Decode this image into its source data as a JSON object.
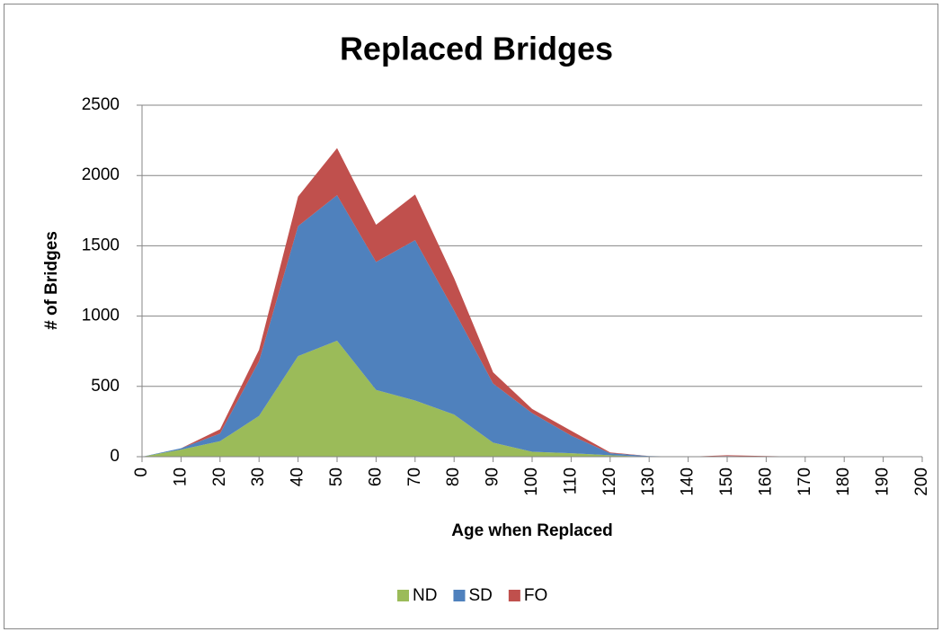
{
  "chart_data": {
    "type": "area",
    "stacked": true,
    "title": "Replaced Bridges",
    "x_label": "Age when Replaced",
    "y_label": "# of Bridges",
    "x": [
      0,
      10,
      20,
      30,
      40,
      50,
      60,
      70,
      80,
      90,
      100,
      110,
      120,
      130,
      140,
      150,
      160,
      170,
      180,
      190,
      200
    ],
    "series": [
      {
        "name": "ND",
        "color": "#9bbb59",
        "values": [
          0,
          50,
          110,
          290,
          715,
          825,
          475,
          400,
          300,
          100,
          35,
          25,
          10,
          0,
          0,
          0,
          0,
          0,
          0,
          0,
          0
        ]
      },
      {
        "name": "SD",
        "color": "#4f81bd",
        "values": [
          0,
          10,
          55,
          390,
          925,
          1035,
          910,
          1140,
          740,
          420,
          275,
          125,
          15,
          5,
          0,
          5,
          0,
          0,
          0,
          0,
          0
        ]
      },
      {
        "name": "FO",
        "color": "#c0504d",
        "values": [
          0,
          0,
          30,
          80,
          210,
          335,
          265,
          325,
          230,
          80,
          30,
          35,
          5,
          0,
          0,
          5,
          5,
          0,
          0,
          0,
          0
        ]
      }
    ],
    "xlim": [
      0,
      200
    ],
    "xticks": [
      0,
      10,
      20,
      30,
      40,
      50,
      60,
      70,
      80,
      90,
      100,
      110,
      120,
      130,
      140,
      150,
      160,
      170,
      180,
      190,
      200
    ],
    "ylim": [
      0,
      2500
    ],
    "yticks": [
      0,
      500,
      1000,
      1500,
      2000,
      2500
    ],
    "grid": true,
    "legend": "bottom"
  }
}
